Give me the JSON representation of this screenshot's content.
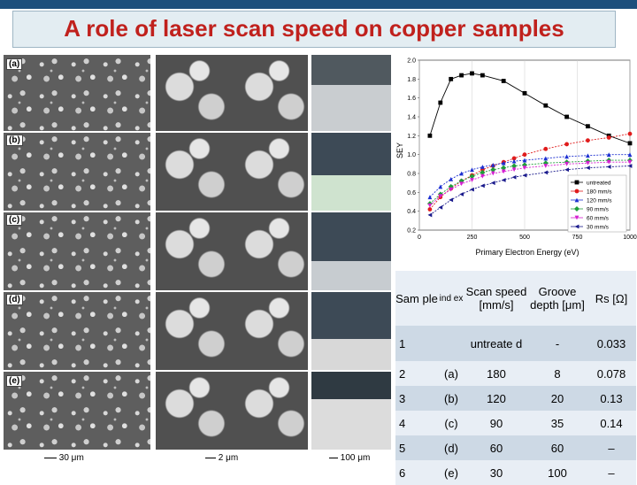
{
  "title": "A role of laser scan speed on copper samples",
  "panels": {
    "labels": [
      "(a)",
      "(b)",
      "(c)",
      "(d)",
      "(e)"
    ],
    "scale_bars": [
      "30 μm",
      "2 μm",
      "100 μm"
    ]
  },
  "chart_data": {
    "type": "line",
    "xlabel": "Primary Electron Energy (eV)",
    "ylabel": "SEY",
    "xlim": [
      0,
      1000
    ],
    "ylim": [
      0.2,
      2.0
    ],
    "x_ticks": [
      "0",
      "250",
      "500",
      "750",
      "1000"
    ],
    "y_ticks": [
      "0.2",
      "0.4",
      "0.6",
      "0.8",
      "1.0",
      "1.2",
      "1.4",
      "1.6",
      "1.8",
      "2.0"
    ],
    "legend_position": "bottom-right",
    "series": [
      {
        "name": "untreated",
        "color": "#000000",
        "marker": "square",
        "x": [
          50,
          100,
          150,
          200,
          250,
          300,
          400,
          500,
          600,
          700,
          800,
          900,
          1000
        ],
        "y": [
          1.2,
          1.55,
          1.8,
          1.84,
          1.86,
          1.84,
          1.78,
          1.65,
          1.52,
          1.4,
          1.3,
          1.2,
          1.12
        ]
      },
      {
        "name": "180 mm/s",
        "color": "#e01c1c",
        "marker": "circle",
        "x": [
          50,
          100,
          150,
          200,
          250,
          300,
          350,
          400,
          450,
          500,
          600,
          700,
          800,
          900,
          1000
        ],
        "y": [
          0.42,
          0.55,
          0.64,
          0.72,
          0.78,
          0.84,
          0.88,
          0.92,
          0.96,
          1.0,
          1.06,
          1.11,
          1.15,
          1.18,
          1.22
        ]
      },
      {
        "name": "120 mm/s",
        "color": "#1c2fd1",
        "marker": "triangle",
        "x": [
          50,
          100,
          150,
          200,
          250,
          300,
          350,
          400,
          450,
          500,
          600,
          700,
          800,
          900,
          1000
        ],
        "y": [
          0.55,
          0.66,
          0.74,
          0.8,
          0.84,
          0.87,
          0.89,
          0.91,
          0.93,
          0.94,
          0.96,
          0.98,
          0.99,
          1.0,
          1.0
        ]
      },
      {
        "name": "90 mm/s",
        "color": "#1f9e3a",
        "marker": "diamond",
        "x": [
          50,
          100,
          150,
          200,
          250,
          300,
          350,
          400,
          450,
          500,
          600,
          700,
          800,
          900,
          1000
        ],
        "y": [
          0.48,
          0.58,
          0.66,
          0.72,
          0.77,
          0.81,
          0.84,
          0.86,
          0.88,
          0.89,
          0.91,
          0.92,
          0.93,
          0.94,
          0.94
        ]
      },
      {
        "name": "60 mm/s",
        "color": "#d61fd1",
        "marker": "triangle-down",
        "x": [
          50,
          100,
          150,
          200,
          250,
          300,
          350,
          400,
          450,
          500,
          600,
          700,
          800,
          900,
          1000
        ],
        "y": [
          0.46,
          0.56,
          0.63,
          0.69,
          0.73,
          0.77,
          0.8,
          0.82,
          0.84,
          0.86,
          0.88,
          0.9,
          0.91,
          0.92,
          0.92
        ]
      },
      {
        "name": "30 mm/s",
        "color": "#1a1a8c",
        "marker": "triangle-left",
        "x": [
          50,
          100,
          150,
          200,
          250,
          300,
          350,
          400,
          450,
          500,
          600,
          700,
          800,
          900,
          1000
        ],
        "y": [
          0.36,
          0.44,
          0.52,
          0.58,
          0.63,
          0.67,
          0.7,
          0.73,
          0.76,
          0.78,
          0.81,
          0.84,
          0.86,
          0.87,
          0.88
        ]
      }
    ]
  },
  "table": {
    "headers": [
      "Sam ple",
      "ind ex",
      "Scan speed [mm/s]",
      "Groove depth [μm]",
      "Rs [Ω]"
    ],
    "rows": [
      [
        "1",
        "",
        "untreate d",
        "-",
        "0.033"
      ],
      [
        "2",
        "(a)",
        "180",
        "8",
        "0.078"
      ],
      [
        "3",
        "(b)",
        "120",
        "20",
        "0.13"
      ],
      [
        "4",
        "(c)",
        "90",
        "35",
        "0.14"
      ],
      [
        "5",
        "(d)",
        "60",
        "60",
        "–"
      ],
      [
        "6",
        "(e)",
        "30",
        "100",
        "–"
      ]
    ]
  }
}
